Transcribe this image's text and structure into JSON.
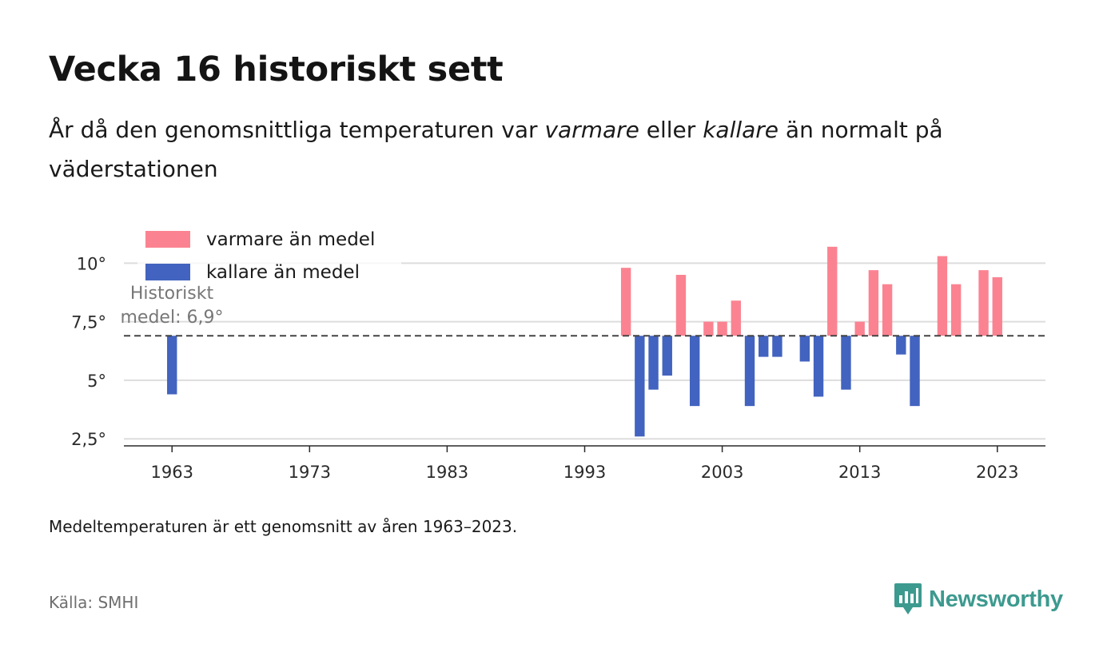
{
  "header": {
    "title": "Vecka 16 historiskt sett",
    "subtitle_pre": "År då den genomsnittliga temperaturen var ",
    "subtitle_warm": "varmare",
    "subtitle_mid": " eller ",
    "subtitle_cold": "kallare",
    "subtitle_post": " än normalt på väderstationen"
  },
  "legend": {
    "warm_label": "varmare än medel",
    "cold_label": "kallare än medel"
  },
  "annotation": {
    "line1": "Historiskt",
    "line2": "medel: 6,9°"
  },
  "footer": {
    "note": "Medeltemperaturen är ett genomsnitt av åren 1963–2023.",
    "source": "Källa: SMHI",
    "logo_text": "Newsworthy",
    "logo_icon": "newsworthy-chart-icon"
  },
  "colors": {
    "warm": "#fb8391",
    "cold": "#4263bf",
    "grid": "#dddddd",
    "mean_line": "#444444"
  },
  "chart_data": {
    "type": "bar",
    "baseline": 6.9,
    "ylim": [
      2.2,
      11
    ],
    "xlim": [
      1959.5,
      2026.5
    ],
    "y_ticks": [
      2.5,
      5,
      7.5,
      10
    ],
    "y_tick_labels": [
      "2,5°",
      "5°",
      "7,5°",
      "10°"
    ],
    "x_ticks": [
      1963,
      1973,
      1983,
      1993,
      2003,
      2013,
      2023
    ],
    "x_tick_labels": [
      "1963",
      "1973",
      "1983",
      "1993",
      "2003",
      "2013",
      "2023"
    ],
    "grid": true,
    "legend_position": "top-left",
    "x": [
      1963,
      1996,
      1997,
      1998,
      1999,
      2000,
      2001,
      2002,
      2003,
      2004,
      2005,
      2006,
      2007,
      2009,
      2010,
      2011,
      2012,
      2013,
      2014,
      2015,
      2016,
      2017,
      2019,
      2020,
      2022,
      2023
    ],
    "values": [
      4.4,
      9.8,
      2.6,
      4.6,
      5.2,
      9.5,
      3.9,
      7.5,
      7.5,
      8.4,
      3.9,
      6.0,
      6.0,
      5.8,
      4.3,
      10.7,
      4.6,
      7.5,
      9.7,
      9.1,
      6.1,
      3.9,
      10.3,
      9.1,
      9.7,
      9.4
    ]
  }
}
